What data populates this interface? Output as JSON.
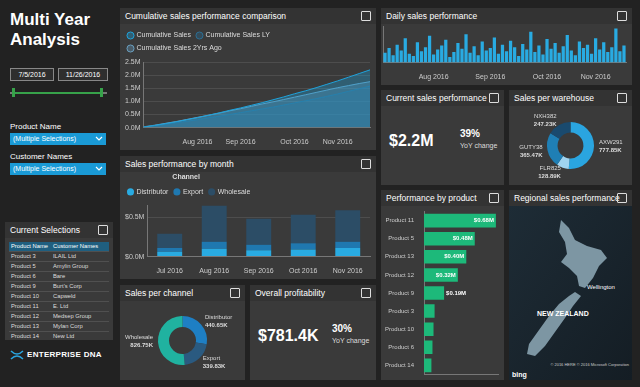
{
  "header": {
    "title": "Multi Year Analysis"
  },
  "filters": {
    "date_from": "7/5/2016",
    "date_to": "11/26/2016",
    "product_label": "Product Name",
    "product_value": "(Multiple Selections)",
    "customer_label": "Customer Names",
    "customer_value": "(Multiple Selections)"
  },
  "current_selections": {
    "title": "Current Selections",
    "columns": [
      "Product Name",
      "Customer Names"
    ],
    "rows": [
      [
        "Product 3",
        "ILAIL Ltd"
      ],
      [
        "Product 5",
        "Amylin Group"
      ],
      [
        "Product 6",
        "Bare"
      ],
      [
        "Product 9",
        "Burt's Corp"
      ],
      [
        "Product 10",
        "Capweld"
      ],
      [
        "Product 11",
        "E. Ltd"
      ],
      [
        "Product 12",
        "Medsep Group"
      ],
      [
        "Product 13",
        "Mylan Corp"
      ],
      [
        "Product 14",
        "New Ltd"
      ]
    ]
  },
  "logo": {
    "text": "ENTERPRISE DNA"
  },
  "kpis": [
    {
      "title": "Current sales performance",
      "value": "$2.2M",
      "change": "39%",
      "change_label": "YoY change"
    },
    {
      "title": "Overall profitability",
      "value": "$781.4K",
      "change": "30%",
      "change_label": "YoY change"
    }
  ],
  "map": {
    "title": "Regional sales performance",
    "country": "NEW ZEALAND",
    "city": "Wellington",
    "brand": "bing",
    "attribution": "© 2016 HERE © 2016 Microsoft Corporation"
  },
  "chart_data": [
    {
      "type": "line",
      "title": "Cumulative sales performance comparison",
      "categories": [
        null,
        null,
        null,
        null,
        null,
        "Aug 2016",
        null,
        null,
        null,
        "Sep 2016",
        null,
        null,
        null,
        null,
        "Oct 2016",
        null,
        null,
        null,
        "Nov 2016",
        null,
        null,
        null
      ],
      "series": [
        {
          "name": "Cumulative Sales",
          "color": "#1fa3dc",
          "values": [
            0.02,
            0.08,
            0.15,
            0.22,
            0.3,
            0.38,
            0.47,
            0.56,
            0.66,
            0.75,
            0.85,
            0.95,
            1.06,
            1.17,
            1.29,
            1.4,
            1.52,
            1.65,
            1.78,
            1.92,
            2.06,
            2.2
          ]
        },
        {
          "name": "Cumulative Sales LY",
          "color": "#2b6e94",
          "values": [
            0.02,
            0.07,
            0.12,
            0.18,
            0.24,
            0.3,
            0.37,
            0.43,
            0.5,
            0.57,
            0.64,
            0.71,
            0.78,
            0.86,
            0.94,
            1.02,
            1.1,
            1.19,
            1.28,
            1.38,
            1.48,
            1.58
          ]
        },
        {
          "name": "Cumulative Sales 2Yrs Ago",
          "color": "#6a9fc0",
          "values": [
            0.03,
            0.09,
            0.16,
            0.23,
            0.31,
            0.39,
            0.47,
            0.55,
            0.64,
            0.72,
            0.81,
            0.9,
            0.98,
            1.07,
            1.16,
            1.25,
            1.34,
            1.43,
            1.52,
            1.6,
            1.68,
            1.75
          ]
        }
      ],
      "ylim": [
        0,
        2.5
      ],
      "yticks": [
        {
          "value": 0,
          "label": "0.0M"
        },
        {
          "value": 0.5,
          "label": "0.5M"
        },
        {
          "value": 1,
          "label": "1.0M"
        },
        {
          "value": 1.5,
          "label": "1.5M"
        },
        {
          "value": 2,
          "label": "2.0M"
        },
        {
          "value": 2.5,
          "label": "2.5M"
        }
      ],
      "grid": true,
      "legend": "top"
    },
    {
      "type": "bar",
      "title": "Daily sales performance",
      "categories": [
        null,
        null,
        null,
        null,
        null,
        null,
        null,
        null,
        null,
        null,
        null,
        null,
        "Aug 2016",
        null,
        null,
        null,
        null,
        null,
        null,
        null,
        null,
        null,
        null,
        null,
        null,
        null,
        "Sep 2016",
        null,
        null,
        null,
        null,
        null,
        null,
        null,
        null,
        null,
        null,
        null,
        null,
        null,
        "Oct 2016",
        null,
        null,
        null,
        null,
        null,
        null,
        null,
        null,
        null,
        null,
        null,
        "Nov 2016",
        null,
        null,
        null,
        null,
        null,
        null,
        null
      ],
      "values": [
        12,
        18,
        9,
        22,
        15,
        30,
        11,
        8,
        25,
        14,
        19,
        33,
        10,
        16,
        21,
        28,
        7,
        13,
        24,
        17,
        35,
        12,
        20,
        9,
        26,
        15,
        18,
        31,
        11,
        22,
        14,
        27,
        19,
        8,
        23,
        16,
        38,
        13,
        21,
        10,
        29,
        17,
        24,
        12,
        20,
        34,
        15,
        9,
        26,
        18,
        22,
        11,
        30,
        16,
        25,
        13,
        19,
        42,
        14,
        21
      ],
      "color": "#29abe2",
      "ylim": [
        0,
        45
      ],
      "grid": false,
      "tick_labels": "x"
    },
    {
      "type": "bar",
      "title": "Sales performance by month",
      "categories": [
        "Jul 2016",
        "Aug 2016",
        "Sep 2016",
        "Oct 2016",
        "Nov 2016"
      ],
      "series": [
        {
          "name": "Distributor",
          "color": "#29abe2",
          "values": [
            0.06,
            0.1,
            0.08,
            0.09,
            0.11
          ]
        },
        {
          "name": "Export",
          "color": "#1f78b0",
          "values": [
            0.05,
            0.09,
            0.07,
            0.08,
            0.08
          ]
        },
        {
          "name": "Wholesale",
          "color": "#2c4d66",
          "values": [
            0.18,
            0.46,
            0.33,
            0.36,
            0.4
          ]
        }
      ],
      "stacked": true,
      "ylim": [
        0,
        0.65
      ],
      "yticks": [
        {
          "value": 0,
          "label": "$0.0M"
        },
        {
          "value": 0.5,
          "label": "$0.5M"
        }
      ],
      "grid": true,
      "legend": "top",
      "legend_title": "Channel"
    },
    {
      "type": "doughnut",
      "title": "Sales per warehouse",
      "categories": [
        "AXW291",
        "FLR825",
        "GUTY38",
        "NXH382"
      ],
      "values": [
        777.85,
        128.89,
        365.47,
        247.23
      ],
      "value_labels": [
        "777.85K",
        "128.89K",
        "365.47K",
        "247.23K"
      ],
      "colors": [
        "#2aa5e0",
        "#9fd3ef",
        "#1f7fb5",
        "#1a4a6e"
      ],
      "data_labels": true
    },
    {
      "type": "doughnut",
      "title": "Sales per channel",
      "categories": [
        "Distributor",
        "Export",
        "Wholesale"
      ],
      "values": [
        440.65,
        339.83,
        826.75
      ],
      "value_labels": [
        "440.65K",
        "339.83K",
        "826.75K"
      ],
      "colors": [
        "#1e7fc4",
        "#2a5a80",
        "#20b2a0"
      ],
      "data_labels": true
    },
    {
      "type": "bar",
      "title": "Performance by product",
      "orientation": "horizontal",
      "categories": [
        "Product 11",
        "Product 5",
        "Product 13",
        "Product 12",
        "Product 9",
        "Product 3",
        "Product 10",
        "Product 6",
        "Product 14"
      ],
      "values": [
        0.68,
        0.48,
        0.4,
        0.32,
        0.19,
        0.1,
        0.09,
        0.08,
        0.07
      ],
      "value_labels": [
        "$0.68M",
        "$0.48M",
        "$0.40M",
        "$0.32M",
        "$0.19M",
        null,
        null,
        null,
        null
      ],
      "color": "#1db97a",
      "xlim": [
        0,
        0.7
      ],
      "grid": false,
      "tick_labels": "y",
      "data_labels": true
    }
  ]
}
